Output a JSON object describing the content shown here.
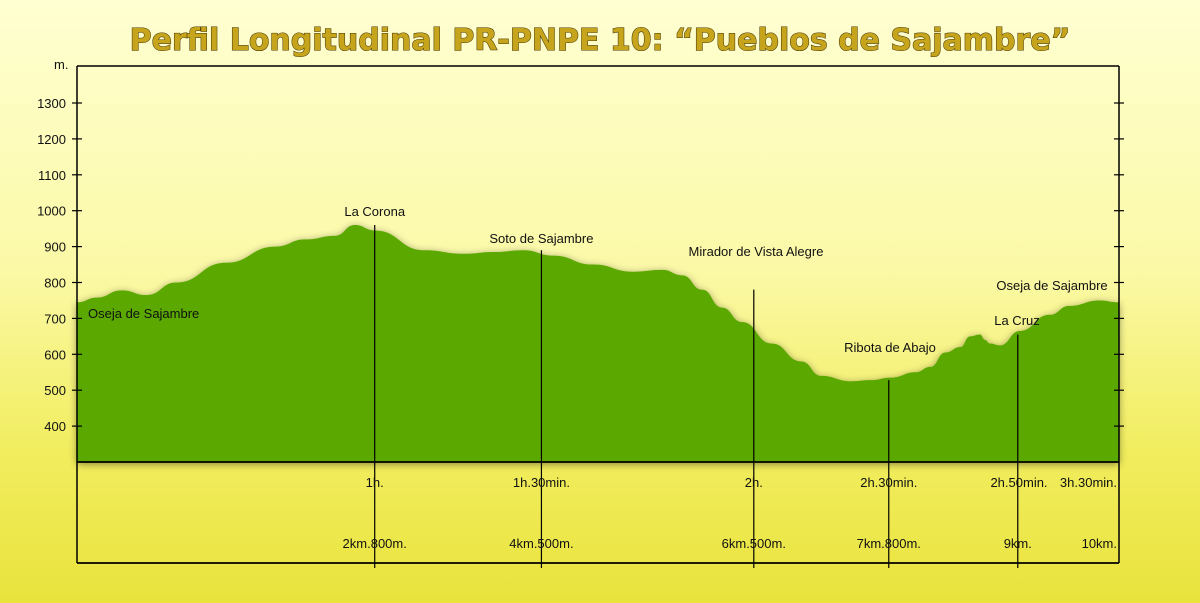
{
  "chart_data": {
    "type": "area",
    "title": "Perfil Longitudinal PR-PNPE 10: “Pueblos de Sajambre”",
    "ylabel": "m.",
    "ylim": [
      300,
      1400
    ],
    "y_ticks": [
      400,
      500,
      600,
      700,
      800,
      900,
      1000,
      1100,
      1200,
      1300
    ],
    "xlim": [
      0,
      10.5
    ],
    "series": [
      {
        "x": [
          0,
          0.2,
          0.45,
          0.7,
          1.0,
          1.5,
          2.0,
          2.3,
          2.6,
          2.8,
          3.0,
          3.5,
          3.9,
          4.2,
          4.5,
          4.8,
          5.2,
          5.6,
          5.9,
          6.1,
          6.3,
          6.5,
          6.7,
          7.0,
          7.3,
          7.5,
          7.8,
          8.0,
          8.2,
          8.45,
          8.6,
          8.75,
          8.9,
          9.0,
          9.1,
          9.15,
          9.2,
          9.3,
          9.5,
          9.8,
          10.0,
          10.3,
          10.5
        ],
        "y": [
          745,
          758,
          778,
          765,
          800,
          855,
          900,
          920,
          930,
          960,
          945,
          890,
          880,
          885,
          890,
          875,
          850,
          830,
          835,
          820,
          780,
          730,
          690,
          630,
          580,
          540,
          525,
          528,
          535,
          550,
          565,
          605,
          620,
          650,
          655,
          640,
          630,
          625,
          665,
          710,
          735,
          750,
          745
        ]
      }
    ],
    "area_color": "#5aa800",
    "grid": false,
    "markers": [
      {
        "x": 3.0,
        "elev": 960,
        "label": "La Corona",
        "time": "1h.",
        "dist": "2km.800m."
      },
      {
        "x": 4.68,
        "elev": 890,
        "label": "Soto de Sajambre",
        "time": "1h.30min.",
        "dist": "4km.500m."
      },
      {
        "x": 6.82,
        "elev": 780,
        "label": "Mirador de Vista Alegre",
        "time": "2h.",
        "dist": "6km.500m."
      },
      {
        "x": 8.18,
        "elev": 528,
        "label": "Ribota de Abajo",
        "time": "2h.30min.",
        "dist": "7km.800m."
      },
      {
        "x": 9.48,
        "elev": 655,
        "label": "La Cruz",
        "time": "2h.50min.",
        "dist": "9km."
      },
      {
        "x": 10.5,
        "elev": 745,
        "label": "Oseja de Sajambre",
        "time": "3h.30min.",
        "dist": "10km."
      }
    ],
    "start_label": "Oseja de Sajambre"
  }
}
